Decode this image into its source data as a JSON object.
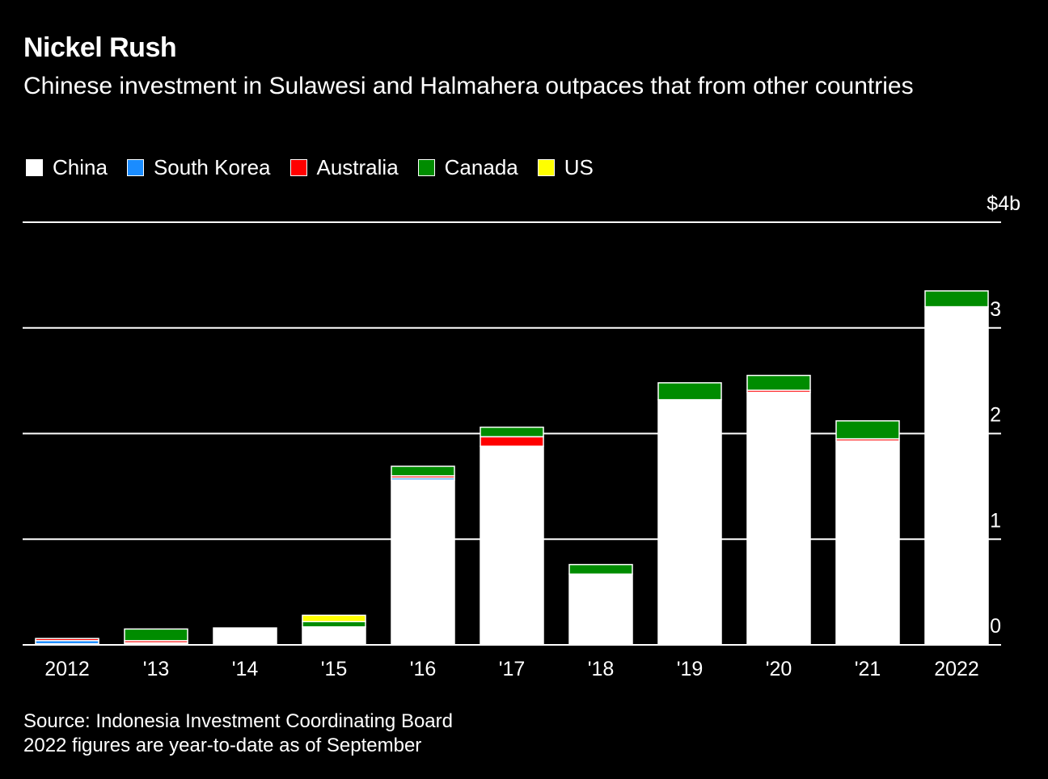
{
  "title": "Nickel Rush",
  "subtitle": "Chinese investment in Sulawesi and Halmahera outpaces that from other countries",
  "footnote": {
    "source": "Source: Indonesia Investment Coordinating Board",
    "note": "2022 figures are year-to-date as of September"
  },
  "chart_data": {
    "type": "bar",
    "stacked": true,
    "categories": [
      "2012",
      "'13",
      "'14",
      "'15",
      "'16",
      "'17",
      "'18",
      "'19",
      "'20",
      "'21",
      "2022"
    ],
    "y_unit_label": "$4b",
    "y_ticks": [
      0,
      1,
      2,
      3,
      4
    ],
    "y_tick_labels": [
      "0",
      "1",
      "2",
      "3",
      "$4b"
    ],
    "ylim": [
      0,
      4
    ],
    "grid": true,
    "legend_position": "top-left",
    "series": [
      {
        "name": "China",
        "color": "#ffffff",
        "values": [
          0.01,
          0.02,
          0.16,
          0.17,
          1.56,
          1.88,
          0.67,
          2.32,
          2.39,
          1.93,
          3.2
        ]
      },
      {
        "name": "South Korea",
        "color": "#1a8cff",
        "values": [
          0.03,
          0,
          0,
          0,
          0.02,
          0,
          0,
          0,
          0,
          0,
          0
        ]
      },
      {
        "name": "Australia",
        "color": "#ff0000",
        "values": [
          0.02,
          0.02,
          0,
          0,
          0.02,
          0.09,
          0,
          0,
          0.02,
          0.02,
          0
        ]
      },
      {
        "name": "Canada",
        "color": "#008c00",
        "values": [
          0,
          0.11,
          0,
          0.05,
          0.09,
          0.09,
          0.09,
          0.16,
          0.14,
          0.17,
          0.15
        ]
      },
      {
        "name": "US",
        "color": "#ffff00",
        "values": [
          0,
          0,
          0,
          0.06,
          0,
          0,
          0,
          0,
          0,
          0,
          0
        ]
      }
    ]
  }
}
